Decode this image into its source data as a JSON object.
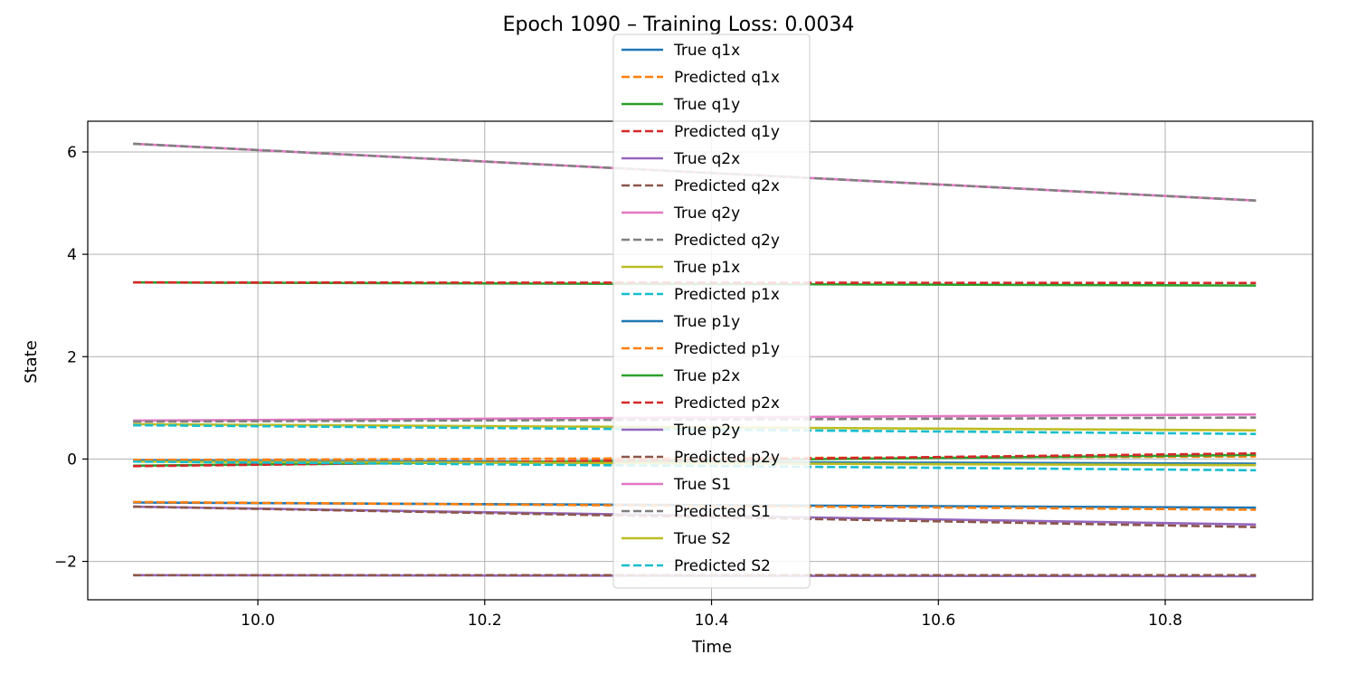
{
  "chart_data": {
    "type": "line",
    "title": "Epoch 1090 – Training Loss: 0.0034",
    "xlabel": "Time",
    "ylabel": "State",
    "xlim": [
      9.85,
      10.93
    ],
    "ylim": [
      -2.75,
      6.6
    ],
    "x_ticks": [
      10.0,
      10.2,
      10.4,
      10.6,
      10.8
    ],
    "x_tick_labels": [
      "10.0",
      "10.2",
      "10.4",
      "10.6",
      "10.8"
    ],
    "y_ticks": [
      -2,
      0,
      2,
      4,
      6
    ],
    "y_tick_labels": [
      "−2",
      "0",
      "2",
      "4",
      "6"
    ],
    "grid": true,
    "legend_position": "top-center",
    "x": [
      9.89,
      10.88
    ],
    "series": [
      {
        "name": "True q1x",
        "color": "#1f77b4",
        "dashed": false,
        "values": [
          -0.85,
          -0.95
        ]
      },
      {
        "name": "Predicted q1x",
        "color": "#ff7f0e",
        "dashed": true,
        "values": [
          -0.84,
          -0.99
        ]
      },
      {
        "name": "True q1y",
        "color": "#2ca02c",
        "dashed": false,
        "values": [
          3.45,
          3.39
        ]
      },
      {
        "name": "Predicted q1y",
        "color": "#d62728",
        "dashed": true,
        "values": [
          3.45,
          3.44
        ]
      },
      {
        "name": "True q2x",
        "color": "#9467bd",
        "dashed": false,
        "values": [
          -0.93,
          -1.28
        ]
      },
      {
        "name": "Predicted q2x",
        "color": "#8c564b",
        "dashed": true,
        "values": [
          -0.93,
          -1.33
        ]
      },
      {
        "name": "True q2y",
        "color": "#e377c2",
        "dashed": false,
        "values": [
          6.16,
          5.05
        ]
      },
      {
        "name": "Predicted q2y",
        "color": "#7f7f7f",
        "dashed": true,
        "values": [
          6.16,
          5.05
        ]
      },
      {
        "name": "True p1x",
        "color": "#bcbd22",
        "dashed": false,
        "values": [
          0.68,
          0.56
        ]
      },
      {
        "name": "Predicted p1x",
        "color": "#17becf",
        "dashed": true,
        "values": [
          0.66,
          0.49
        ]
      },
      {
        "name": "True p1y",
        "color": "#1f77b4",
        "dashed": false,
        "values": [
          -0.03,
          -0.09
        ]
      },
      {
        "name": "Predicted p1y",
        "color": "#ff7f0e",
        "dashed": true,
        "values": [
          -0.02,
          0.05
        ]
      },
      {
        "name": "True p2x",
        "color": "#2ca02c",
        "dashed": false,
        "values": [
          -0.13,
          0.08
        ]
      },
      {
        "name": "Predicted p2x",
        "color": "#d62728",
        "dashed": true,
        "values": [
          -0.14,
          0.11
        ]
      },
      {
        "name": "True p2y",
        "color": "#9467bd",
        "dashed": false,
        "values": [
          -2.27,
          -2.29
        ]
      },
      {
        "name": "Predicted p2y",
        "color": "#8c564b",
        "dashed": true,
        "values": [
          -2.27,
          -2.27
        ]
      },
      {
        "name": "True S1",
        "color": "#e377c2",
        "dashed": false,
        "values": [
          0.75,
          0.87
        ]
      },
      {
        "name": "Predicted S1",
        "color": "#7f7f7f",
        "dashed": true,
        "values": [
          0.73,
          0.81
        ]
      },
      {
        "name": "True S2",
        "color": "#bcbd22",
        "dashed": false,
        "values": [
          -0.05,
          -0.12
        ]
      },
      {
        "name": "Predicted S2",
        "color": "#17becf",
        "dashed": true,
        "values": [
          -0.05,
          -0.22
        ]
      }
    ]
  }
}
